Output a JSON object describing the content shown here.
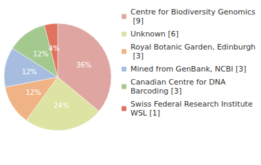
{
  "chart_data": {
    "type": "pie",
    "categories": [
      "Centre for Biodiversity Genomics [9]",
      "Unknown [6]",
      "Royal Botanic Garden, Edinburgh [3]",
      "Mined from GenBank, NCBI [3]",
      "Canadian Centre for DNA Barcoding [3]",
      "Swiss Federal Research Institute WSL [1]"
    ],
    "values": [
      36,
      24,
      12,
      12,
      12,
      4
    ],
    "value_labels": [
      "36%",
      "24%",
      "12%",
      "12%",
      "12%",
      "4%"
    ],
    "colors": [
      "#dfa5a0",
      "#dde3a3",
      "#f0b386",
      "#a6bde0",
      "#a4c98e",
      "#e0735e"
    ],
    "data_labels": true,
    "legend": "right"
  }
}
